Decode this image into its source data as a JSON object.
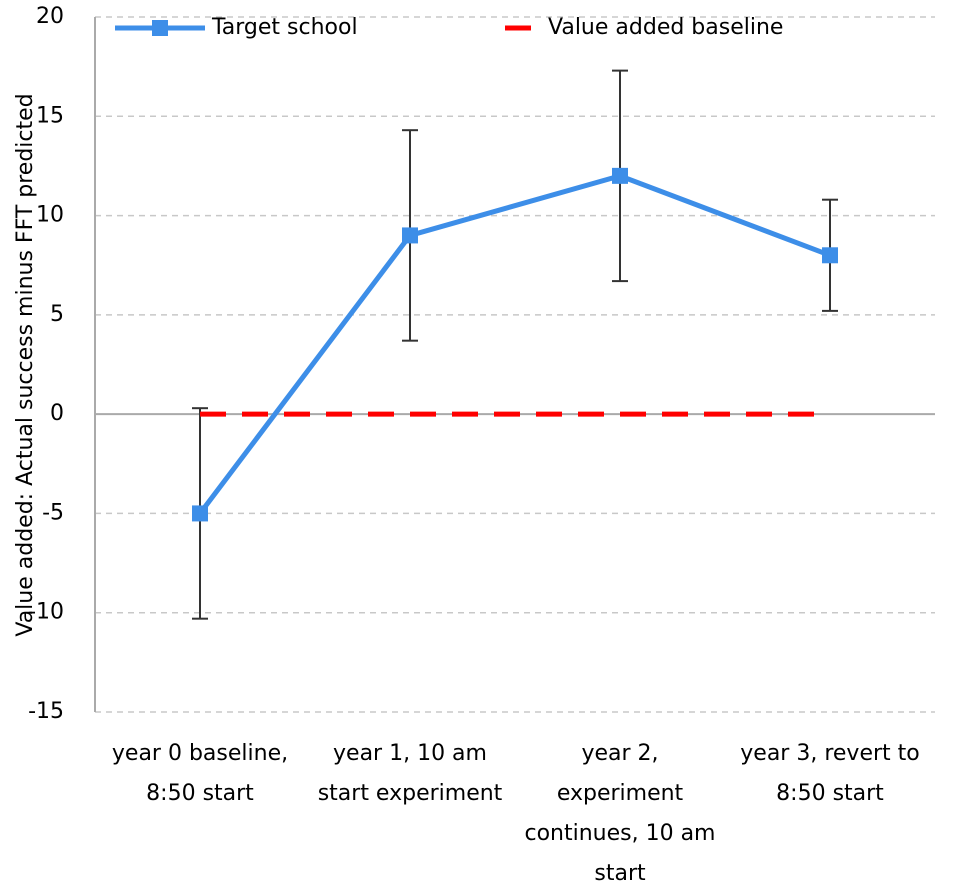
{
  "chart_data": {
    "type": "line",
    "y_label": "Value added: Actual success minus FFT predicted",
    "categories": [
      "year 0 baseline, 8:50 start",
      "year 1, 10 am start experiment",
      "year 2, experiment continues, 10 am start",
      "year 3, revert to 8:50 start"
    ],
    "series": [
      {
        "name": "Target school",
        "color": "#3d8ee8",
        "values": [
          -5,
          9,
          12,
          8
        ],
        "errors": [
          5.3,
          5.3,
          5.3,
          2.8
        ],
        "marker": "square"
      },
      {
        "name": "Value added baseline",
        "color": "#ff0000",
        "values": [
          0,
          0,
          0,
          0
        ],
        "dashed": true
      }
    ],
    "ylim": [
      -15,
      20
    ],
    "yticks": [
      -15,
      -10,
      -5,
      0,
      5,
      10,
      15,
      20
    ],
    "grid": true,
    "legend": "top"
  }
}
